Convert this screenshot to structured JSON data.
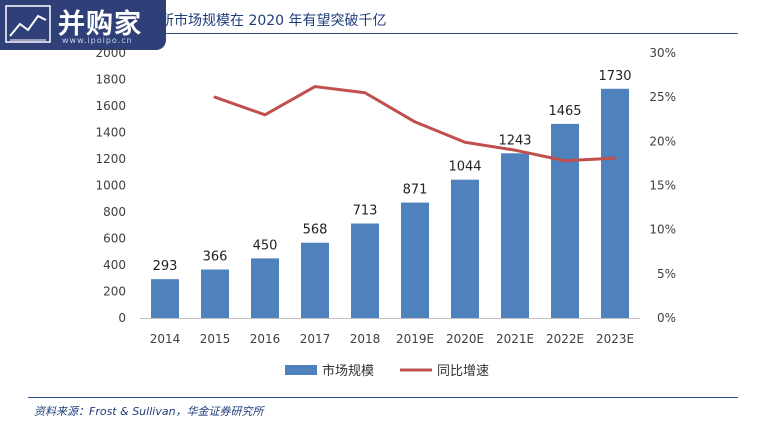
{
  "logo": {
    "text": "并购家",
    "subtext": "www.ipoipo.cn"
  },
  "header": {
    "title": "所市场规模在 2020 年有望突破千亿"
  },
  "footer": {
    "source": "资料来源：Frost & Sullivan，华金证券研究所"
  },
  "colors": {
    "bar": "#4f81bd",
    "line": "#c0504d",
    "rule": "#2b4a8a",
    "title": "#1f3d7a"
  },
  "chart_data": {
    "type": "bar",
    "categories": [
      "2014",
      "2015",
      "2016",
      "2017",
      "2018",
      "2019E",
      "2020E",
      "2021E",
      "2022E",
      "2023E"
    ],
    "series": [
      {
        "name": "市场规模",
        "type": "bar",
        "axis": "left",
        "values": [
          293,
          366,
          450,
          568,
          713,
          871,
          1044,
          1243,
          1465,
          1730
        ]
      },
      {
        "name": "同比增速",
        "type": "line",
        "axis": "right",
        "values": [
          null,
          0.25,
          0.23,
          0.262,
          0.255,
          0.222,
          0.199,
          0.19,
          0.178,
          0.181
        ]
      }
    ],
    "ylim": [
      0,
      2000
    ],
    "yticks": [
      "0",
      "200",
      "400",
      "600",
      "800",
      "1000",
      "1200",
      "1400",
      "1600",
      "1800",
      "2000"
    ],
    "y2lim": [
      0,
      0.3
    ],
    "y2ticks": [
      "0%",
      "5%",
      "10%",
      "15%",
      "20%",
      "25%",
      "30%"
    ],
    "data_labels": [
      "293",
      "366",
      "450",
      "568",
      "713",
      "871",
      "1044",
      "1243",
      "1465",
      "1730"
    ],
    "legend": {
      "position": "bottom",
      "items": [
        "市场规模",
        "同比增速"
      ]
    },
    "grid": false
  }
}
